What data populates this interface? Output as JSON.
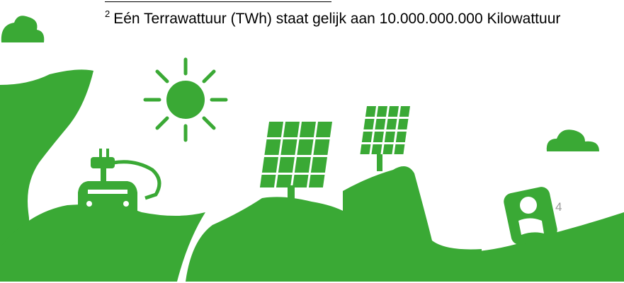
{
  "footnote": {
    "marker": "2",
    "text": "Eén Terrawattuur (TWh) staat gelijk aan 10.000.000.000 Kilowattuur"
  },
  "page_number": "4"
}
